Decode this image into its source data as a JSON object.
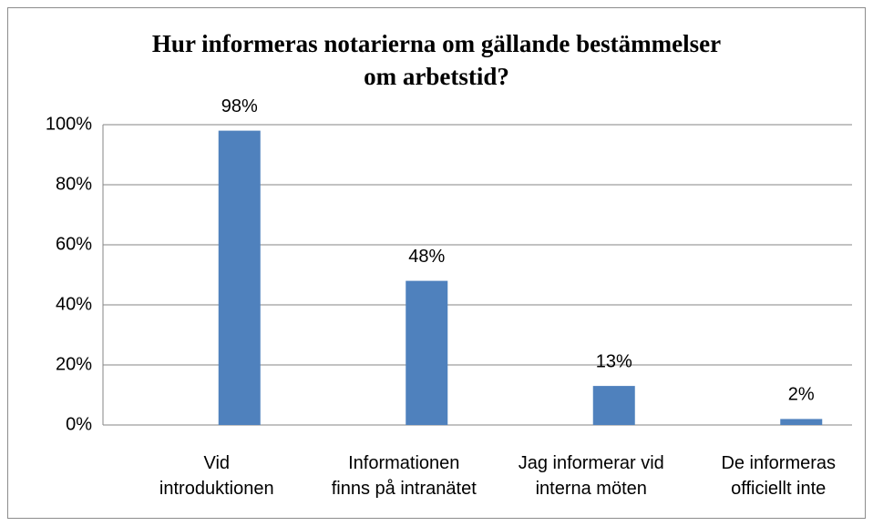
{
  "chart_data": {
    "type": "bar",
    "title": "Hur informeras notarierna om gällande bestämmelser\nom arbetstid?",
    "categories": [
      "Vid\nintroduktionen",
      "Informationen\nfinns på intranätet",
      "Jag informerar vid\ninterna möten",
      "De informeras\nofficiellt inte"
    ],
    "values": [
      98,
      48,
      13,
      2
    ],
    "value_labels": [
      "98%",
      "48%",
      "13%",
      "2%"
    ],
    "color": "#4f81bd",
    "ylim": [
      0,
      100
    ],
    "yticks": [
      {
        "value": 0,
        "label": "0%"
      },
      {
        "value": 20,
        "label": "20%"
      },
      {
        "value": 40,
        "label": "40%"
      },
      {
        "value": 60,
        "label": "60%"
      },
      {
        "value": 80,
        "label": "80%"
      },
      {
        "value": 100,
        "label": "100%"
      }
    ],
    "grid": true
  }
}
